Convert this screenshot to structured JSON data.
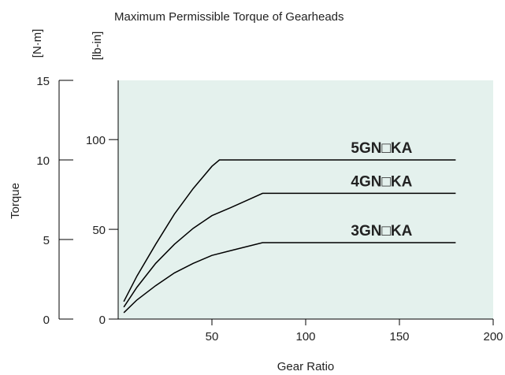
{
  "chart_data": {
    "type": "line",
    "title": "Maximum Permissible Torque of Gearheads",
    "xlabel": "Gear Ratio",
    "ylabel": "Torque",
    "yunit": "[N·m]",
    "y2unit": "[lb-in]",
    "xlim": [
      0,
      200
    ],
    "xticks": [
      50,
      100,
      150,
      200
    ],
    "ylim": [
      0,
      15
    ],
    "yticks": [
      0,
      5,
      10,
      15
    ],
    "y2lim": [
      0,
      133
    ],
    "y2ticks": [
      0,
      50,
      100
    ],
    "background": "#e4f1ed",
    "series": [
      {
        "name": "5GN□KA",
        "color": "#000000",
        "x": [
          3,
          10,
          20,
          30,
          40,
          50,
          54,
          180
        ],
        "values": [
          1.1,
          2.7,
          4.7,
          6.6,
          8.2,
          9.6,
          10,
          10
        ]
      },
      {
        "name": "4GN□KA",
        "color": "#000000",
        "x": [
          3,
          10,
          20,
          30,
          40,
          50,
          60,
          77,
          180
        ],
        "values": [
          0.75,
          2.0,
          3.5,
          4.7,
          5.7,
          6.5,
          7.0,
          7.9,
          7.9
        ]
      },
      {
        "name": "3GN□KA",
        "color": "#000000",
        "x": [
          3,
          10,
          20,
          30,
          40,
          50,
          60,
          77,
          180
        ],
        "values": [
          0.4,
          1.2,
          2.1,
          2.9,
          3.5,
          4.0,
          4.3,
          4.8,
          4.8
        ]
      }
    ]
  }
}
